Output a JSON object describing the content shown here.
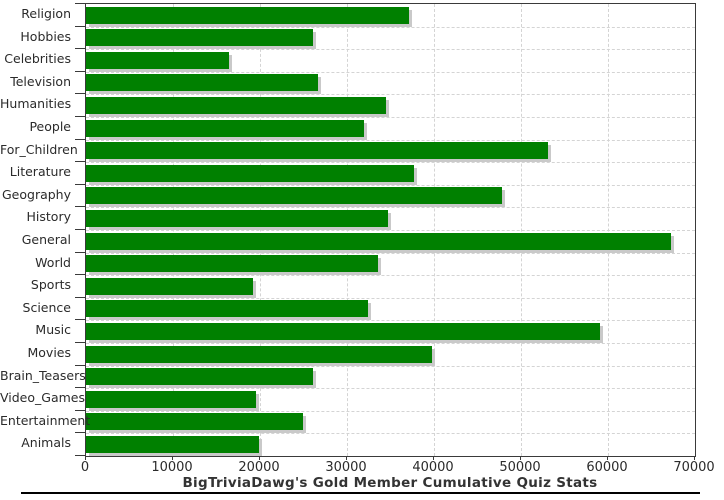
{
  "title": "BigTriviaDawg's Gold Member Cumulative Quiz Stats",
  "colors": {
    "bar": "#008000",
    "bar_shadow": "#c9c9c9",
    "gridline": "#d4d4d4",
    "axis": "#3a3a3a",
    "text": "#2b2b2b",
    "background": "#ffffff",
    "bottom_rule": "#000000"
  },
  "chart_data": {
    "type": "bar",
    "orientation": "horizontal",
    "title": "BigTriviaDawg's Gold Member Cumulative Quiz Stats",
    "xlabel": "",
    "ylabel": "",
    "xlim": [
      0,
      70000
    ],
    "x_ticks": [
      0,
      10000,
      20000,
      30000,
      40000,
      50000,
      60000,
      70000
    ],
    "x_tick_labels": [
      "0",
      "10000",
      "20000",
      "30000",
      "40000",
      "50000",
      "60000",
      "70000"
    ],
    "grid": true,
    "legend": false,
    "categories": [
      "Religion",
      "Hobbies",
      "Celebrities",
      "Television",
      "Humanities",
      "People",
      "For_Children",
      "Literature",
      "Geography",
      "History",
      "General",
      "World",
      "Sports",
      "Science",
      "Music",
      "Movies",
      "Brain_Teasers",
      "Video_Games",
      "Entertainment",
      "Animals"
    ],
    "values": [
      37100,
      26100,
      16400,
      26700,
      34500,
      32000,
      53100,
      37700,
      47800,
      34700,
      67200,
      33600,
      19200,
      32400,
      59100,
      39800,
      26100,
      19500,
      24900,
      19900
    ]
  }
}
